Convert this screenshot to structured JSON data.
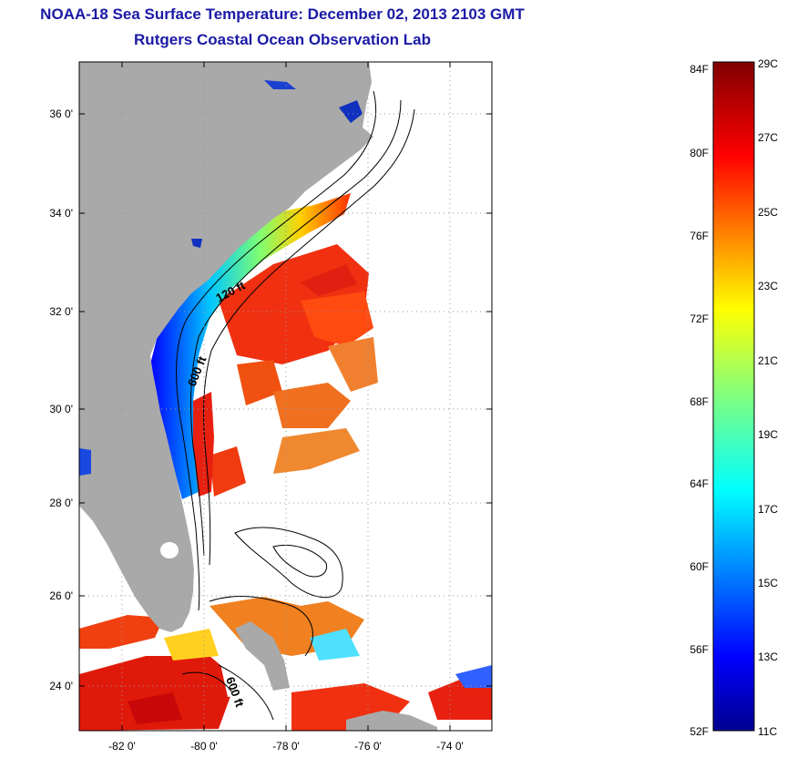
{
  "title": "NOAA-18 Sea Surface Temperature:  December 02, 2013 2103 GMT",
  "subtitle": "Rutgers Coastal Ocean Observation Lab",
  "map": {
    "lat_labels": [
      "36 0'",
      "34 0'",
      "32 0'",
      "30 0'",
      "28 0'",
      "26 0'",
      "24 0'"
    ],
    "lon_labels": [
      "-82 0'",
      "-80 0'",
      "-78 0'",
      "-76 0'",
      "-74 0'"
    ],
    "contour_labels": [
      "120 ft",
      "600 ft",
      "600 ft"
    ],
    "colors": {
      "land": "#a9a9a9",
      "ocean_nodata": "#ffffff",
      "frame": "#000000",
      "grid": "#999999"
    }
  },
  "colorbar": {
    "fahrenheit_labels": [
      "84F",
      "80F",
      "76F",
      "72F",
      "68F",
      "64F",
      "60F",
      "56F",
      "52F"
    ],
    "celsius_labels": [
      "29C",
      "27C",
      "25C",
      "23C",
      "21C",
      "19C",
      "17C",
      "15C",
      "13C",
      "11C"
    ],
    "range_c": [
      11,
      29
    ],
    "colormap": "jet"
  }
}
